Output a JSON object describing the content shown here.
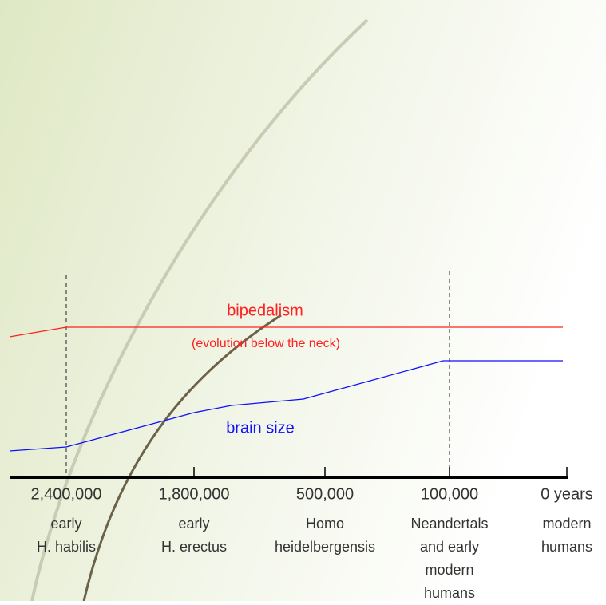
{
  "lines": [
    {
      "label": "bipedalism",
      "sublabel": "(evolution below the neck)"
    },
    {
      "label": "brain size"
    }
  ],
  "timeline": [
    {
      "time": "2,400,000",
      "label": [
        "early",
        "H. habilis"
      ]
    },
    {
      "time": "1,800,000",
      "label": [
        "early",
        "H. erectus"
      ]
    },
    {
      "time": "500,000",
      "label": [
        "Homo",
        "heidelbergensis"
      ]
    },
    {
      "time": "100,000",
      "label": [
        "Neandertals",
        "and early",
        "modern",
        "humans"
      ]
    },
    {
      "time": "0 years",
      "label": [
        "modern",
        "humans"
      ]
    }
  ]
}
